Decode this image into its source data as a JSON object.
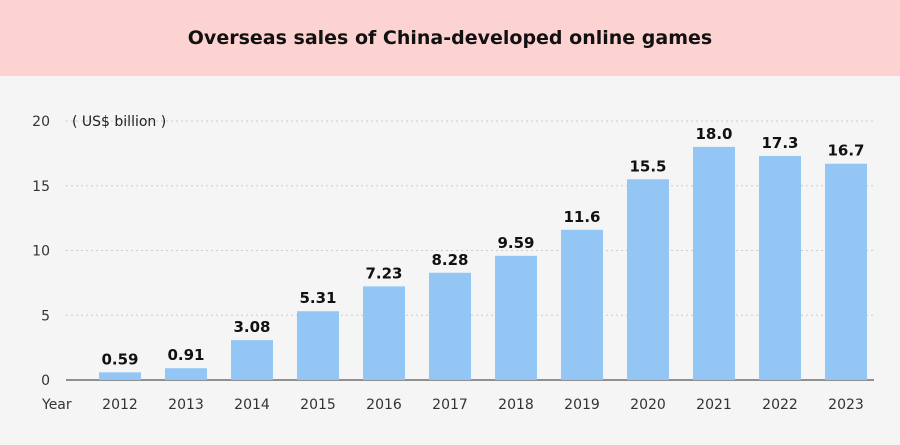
{
  "chart_data": {
    "type": "bar",
    "title": "Overseas sales of China-developed online games",
    "unit_label": "( US$ billion )",
    "xlabel": "Year",
    "ylabel": "",
    "categories": [
      "2012",
      "2013",
      "2014",
      "2015",
      "2016",
      "2017",
      "2018",
      "2019",
      "2020",
      "2021",
      "2022",
      "2023"
    ],
    "values": [
      0.59,
      0.91,
      3.08,
      5.31,
      7.23,
      8.28,
      9.59,
      11.6,
      15.5,
      18.0,
      17.3,
      16.7
    ],
    "value_labels": [
      "0.59",
      "0.91",
      "3.08",
      "5.31",
      "7.23",
      "8.28",
      "9.59",
      "11.6",
      "15.5",
      "18.0",
      "17.3",
      "16.7"
    ],
    "ylim": [
      0,
      20
    ],
    "yticks": [
      0,
      5,
      10,
      15,
      20
    ],
    "grid": true,
    "colors": {
      "bar": "#93c6f4",
      "title_band": "#fdd3d1",
      "grid": "#cccccc"
    }
  }
}
